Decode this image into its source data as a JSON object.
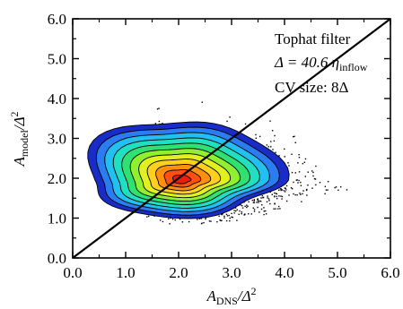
{
  "chart_data": {
    "type": "heatmap",
    "title": "",
    "xlabel": {
      "main": "A",
      "sub": "DNS",
      "rest": "/Δ",
      "sup": "2"
    },
    "ylabel": {
      "main": "A",
      "sub": "model",
      "rest": "/Δ",
      "sup": "2"
    },
    "xlim": [
      0.0,
      6.0
    ],
    "ylim": [
      0.0,
      6.0
    ],
    "x_ticks": [
      "0.0",
      "1.0",
      "2.0",
      "3.0",
      "4.0",
      "5.0",
      "6.0"
    ],
    "y_ticks": [
      "0.0",
      "1.0",
      "2.0",
      "3.0",
      "4.0",
      "5.0",
      "6.0"
    ],
    "grid": false,
    "annotations": [
      {
        "text": "Tophat filter"
      },
      {
        "main": "Δ = 40.6 η",
        "sub": "inflow"
      },
      {
        "text": "CV size: 8Δ"
      }
    ],
    "reference_line": {
      "name": "y = x",
      "from": [
        0.0,
        0.0
      ],
      "to": [
        6.0,
        6.0
      ]
    },
    "peak": {
      "x": 2.05,
      "y": 1.95
    },
    "scatter_extent": {
      "x_min": 0.15,
      "x_max": 5.55,
      "y_min": 0.85,
      "y_max": 4.05
    },
    "contour_colors": [
      "#1a2cc8",
      "#2a7cf0",
      "#22c0f0",
      "#20e0c0",
      "#30e070",
      "#90f030",
      "#e0f020",
      "#ffd020",
      "#ff9010",
      "#ff5010",
      "#ee1a10"
    ]
  }
}
